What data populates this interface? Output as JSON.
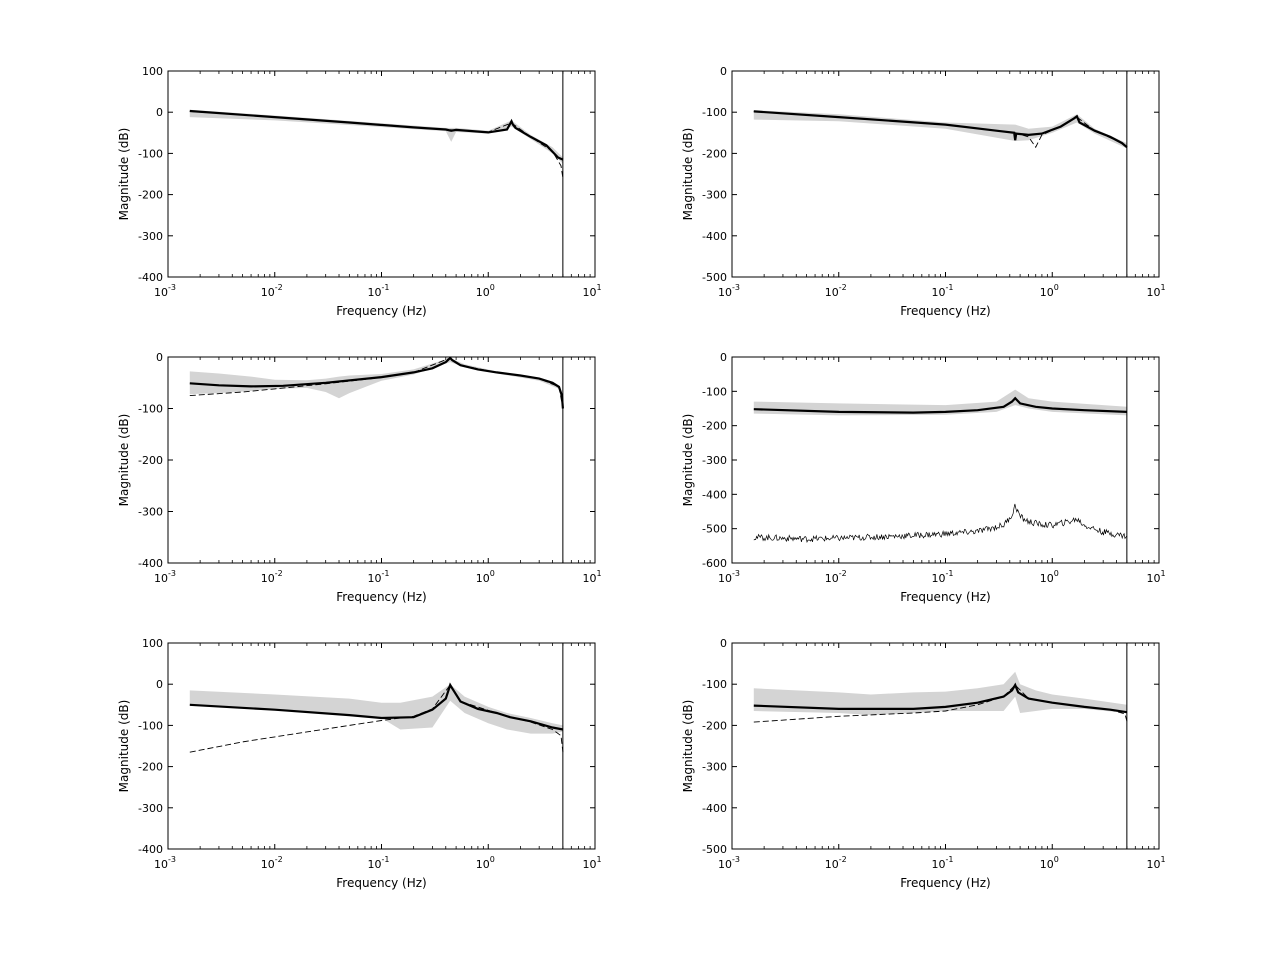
{
  "figure": {
    "background": "#ffffff",
    "band_color": "#d4d4d4",
    "line_color": "#000000"
  },
  "chart_data": [
    {
      "type": "line",
      "xscale": "log",
      "xlim": [
        0.001,
        10
      ],
      "ylim": [
        -400,
        100
      ],
      "yticks": [
        100,
        0,
        -100,
        -200,
        -300,
        -400
      ],
      "xticks": [
        {
          "base": "10",
          "exp": "-3"
        },
        {
          "base": "10",
          "exp": "-2"
        },
        {
          "base": "10",
          "exp": "-1"
        },
        {
          "base": "10",
          "exp": "0"
        },
        {
          "base": "10",
          "exp": "1"
        }
      ],
      "xlabel": "Frequency (Hz)",
      "ylabel": "Magnitude (dB)",
      "grid": false,
      "vline_x": 5,
      "series": [
        {
          "style": "solid-thick",
          "x": [
            0.0016,
            0.01,
            0.05,
            0.2,
            0.4,
            0.45,
            0.5,
            1.0,
            1.5,
            1.65,
            1.7,
            1.8,
            2.5,
            3.5,
            4.5,
            5.0
          ],
          "y": [
            3,
            -12,
            -25,
            -37,
            -42,
            -45,
            -43,
            -49,
            -42,
            -22,
            -30,
            -38,
            -60,
            -80,
            -110,
            -115
          ]
        },
        {
          "style": "dashed-thin",
          "x": [
            0.0016,
            0.01,
            0.1,
            0.4,
            1.0,
            1.65,
            2.5,
            4.0,
            4.8,
            5.0
          ],
          "y": [
            2,
            -12,
            -30,
            -42,
            -48,
            -26,
            -60,
            -95,
            -130,
            -160
          ]
        }
      ],
      "band": {
        "x": [
          0.0016,
          0.01,
          0.1,
          0.4,
          0.45,
          0.5,
          1.0,
          1.65,
          2.5,
          4.0,
          5.0
        ],
        "upper": [
          6,
          -8,
          -27,
          -38,
          -38,
          -38,
          -45,
          -20,
          -55,
          -85,
          -110
        ],
        "lower": [
          -12,
          -20,
          -36,
          -46,
          -72,
          -48,
          -52,
          -35,
          -65,
          -100,
          -125
        ]
      }
    },
    {
      "type": "line",
      "xscale": "log",
      "xlim": [
        0.001,
        10
      ],
      "ylim": [
        -500,
        0
      ],
      "yticks": [
        0,
        -100,
        -200,
        -300,
        -400,
        -500
      ],
      "xticks": [
        {
          "base": "10",
          "exp": "-3"
        },
        {
          "base": "10",
          "exp": "-2"
        },
        {
          "base": "10",
          "exp": "-1"
        },
        {
          "base": "10",
          "exp": "0"
        },
        {
          "base": "10",
          "exp": "1"
        }
      ],
      "xlabel": "Frequency (Hz)",
      "ylabel": "Magnitude (dB)",
      "grid": false,
      "vline_x": 5,
      "series": [
        {
          "style": "solid-thick",
          "x": [
            0.0016,
            0.01,
            0.1,
            0.3,
            0.44,
            0.45,
            0.46,
            0.6,
            0.8,
            1.2,
            1.6,
            1.7,
            1.8,
            2.5,
            3.5,
            4.5,
            5.0
          ],
          "y": [
            -98,
            -112,
            -130,
            -145,
            -150,
            -168,
            -152,
            -155,
            -152,
            -135,
            -115,
            -110,
            -125,
            -145,
            -160,
            -175,
            -185
          ]
        },
        {
          "style": "dashed-thin",
          "x": [
            0.0016,
            0.1,
            0.45,
            0.6,
            0.7,
            0.8,
            1.2,
            1.7,
            2.5,
            4.5,
            5.0
          ],
          "y": [
            -98,
            -130,
            -150,
            -160,
            -185,
            -155,
            -135,
            -112,
            -145,
            -175,
            -185
          ]
        }
      ],
      "band": {
        "x": [
          0.0016,
          0.01,
          0.1,
          0.45,
          0.6,
          1.0,
          1.7,
          2.5,
          5.0
        ],
        "upper": [
          -95,
          -105,
          -125,
          -130,
          -140,
          -135,
          -105,
          -140,
          -175
        ],
        "lower": [
          -118,
          -122,
          -140,
          -170,
          -168,
          -150,
          -125,
          -152,
          -188
        ]
      }
    },
    {
      "type": "line",
      "xscale": "log",
      "xlim": [
        0.001,
        10
      ],
      "ylim": [
        -400,
        0
      ],
      "yticks": [
        0,
        -100,
        -200,
        -300,
        -400
      ],
      "xticks": [
        {
          "base": "10",
          "exp": "-3"
        },
        {
          "base": "10",
          "exp": "-2"
        },
        {
          "base": "10",
          "exp": "-1"
        },
        {
          "base": "10",
          "exp": "0"
        },
        {
          "base": "10",
          "exp": "1"
        }
      ],
      "xlabel": "Frequency (Hz)",
      "ylabel": "Magnitude (dB)",
      "grid": false,
      "vline_x": 5,
      "series": [
        {
          "style": "solid-thick",
          "x": [
            0.0016,
            0.003,
            0.006,
            0.012,
            0.03,
            0.1,
            0.2,
            0.3,
            0.4,
            0.44,
            0.46,
            0.55,
            0.8,
            1.2,
            2.0,
            3.0,
            4.0,
            4.6,
            4.9,
            5.0
          ],
          "y": [
            -51,
            -55,
            -57,
            -56,
            -50,
            -39,
            -30,
            -22,
            -10,
            -2,
            -6,
            -16,
            -24,
            -30,
            -36,
            -42,
            -50,
            -58,
            -75,
            -100
          ]
        },
        {
          "style": "dashed-thin",
          "x": [
            0.0016,
            0.005,
            0.01,
            0.03,
            0.1,
            0.2,
            0.44,
            0.55,
            1.2,
            3.0,
            4.6,
            5.0
          ],
          "y": [
            -75,
            -68,
            -62,
            -52,
            -40,
            -30,
            -2,
            -16,
            -30,
            -42,
            -58,
            -100
          ]
        }
      ],
      "band": {
        "x": [
          0.0016,
          0.003,
          0.006,
          0.01,
          0.02,
          0.03,
          0.04,
          0.05,
          0.1,
          0.2,
          0.44,
          0.6,
          1.2,
          3.0,
          4.6,
          5.0
        ],
        "upper": [
          -28,
          -32,
          -38,
          -44,
          -45,
          -42,
          -38,
          -36,
          -33,
          -24,
          -2,
          -14,
          -28,
          -40,
          -56,
          -95
        ],
        "lower": [
          -72,
          -70,
          -66,
          -62,
          -60,
          -68,
          -80,
          -70,
          -46,
          -34,
          -10,
          -20,
          -32,
          -46,
          -62,
          -105
        ]
      }
    },
    {
      "type": "line",
      "xscale": "log",
      "xlim": [
        0.001,
        10
      ],
      "ylim": [
        -600,
        0
      ],
      "yticks": [
        0,
        -100,
        -200,
        -300,
        -400,
        -500,
        -600
      ],
      "xticks": [
        {
          "base": "10",
          "exp": "-3"
        },
        {
          "base": "10",
          "exp": "-2"
        },
        {
          "base": "10",
          "exp": "-1"
        },
        {
          "base": "10",
          "exp": "0"
        },
        {
          "base": "10",
          "exp": "1"
        }
      ],
      "xlabel": "Frequency (Hz)",
      "ylabel": "Magnitude (dB)",
      "grid": false,
      "vline_x": 5,
      "series": [
        {
          "style": "solid-thick",
          "x": [
            0.0016,
            0.01,
            0.05,
            0.1,
            0.2,
            0.35,
            0.42,
            0.45,
            0.5,
            0.7,
            1.0,
            2.0,
            5.0
          ],
          "y": [
            -152,
            -160,
            -162,
            -160,
            -155,
            -145,
            -130,
            -120,
            -135,
            -145,
            -150,
            -155,
            -160
          ]
        },
        {
          "style": "noisy-thin",
          "x": [
            0.0016,
            0.005,
            0.01,
            0.05,
            0.1,
            0.2,
            0.35,
            0.42,
            0.45,
            0.5,
            0.6,
            0.8,
            1.0,
            1.5,
            1.7,
            2.0,
            3.0,
            5.0
          ],
          "y": [
            -525,
            -530,
            -528,
            -520,
            -515,
            -508,
            -490,
            -460,
            -432,
            -465,
            -480,
            -488,
            -490,
            -478,
            -472,
            -490,
            -510,
            -522
          ]
        }
      ],
      "band": {
        "x": [
          0.0016,
          0.01,
          0.1,
          0.3,
          0.45,
          0.6,
          1.0,
          5.0
        ],
        "upper": [
          -130,
          -135,
          -140,
          -130,
          -95,
          -120,
          -130,
          -145
        ],
        "lower": [
          -165,
          -170,
          -168,
          -160,
          -140,
          -150,
          -160,
          -170
        ]
      }
    },
    {
      "type": "line",
      "xscale": "log",
      "xlim": [
        0.001,
        10
      ],
      "ylim": [
        -400,
        100
      ],
      "yticks": [
        100,
        0,
        -100,
        -200,
        -300,
        -400
      ],
      "xticks": [
        {
          "base": "10",
          "exp": "-3"
        },
        {
          "base": "10",
          "exp": "-2"
        },
        {
          "base": "10",
          "exp": "-1"
        },
        {
          "base": "10",
          "exp": "0"
        },
        {
          "base": "10",
          "exp": "1"
        }
      ],
      "xlabel": "Frequency (Hz)",
      "ylabel": "Magnitude (dB)",
      "grid": false,
      "vline_x": 5,
      "series": [
        {
          "style": "solid-thick",
          "x": [
            0.0016,
            0.01,
            0.05,
            0.1,
            0.2,
            0.3,
            0.4,
            0.44,
            0.46,
            0.55,
            0.8,
            1.2,
            1.6,
            2.5,
            4.0,
            5.0
          ],
          "y": [
            -50,
            -62,
            -75,
            -82,
            -80,
            -62,
            -35,
            -2,
            -10,
            -42,
            -60,
            -70,
            -80,
            -90,
            -105,
            -110
          ]
        },
        {
          "style": "dashed-thin",
          "x": [
            0.0016,
            0.005,
            0.01,
            0.05,
            0.1,
            0.2,
            0.3,
            0.44,
            0.55,
            1.2,
            2.5,
            4.0,
            4.8,
            5.0
          ],
          "y": [
            -165,
            -140,
            -128,
            -100,
            -88,
            -78,
            -60,
            -2,
            -42,
            -70,
            -92,
            -110,
            -125,
            -165
          ]
        }
      ],
      "band": {
        "x": [
          0.0016,
          0.01,
          0.05,
          0.1,
          0.15,
          0.3,
          0.44,
          0.6,
          1.0,
          1.5,
          2.5,
          4.0,
          5.0
        ],
        "upper": [
          -15,
          -25,
          -35,
          -45,
          -45,
          -30,
          0,
          -30,
          -55,
          -70,
          -82,
          -95,
          -100
        ],
        "lower": [
          -50,
          -62,
          -75,
          -82,
          -110,
          -105,
          -40,
          -70,
          -95,
          -110,
          -120,
          -120,
          -115
        ]
      }
    },
    {
      "type": "line",
      "xscale": "log",
      "xlim": [
        0.001,
        10
      ],
      "ylim": [
        -500,
        0
      ],
      "yticks": [
        0,
        -100,
        -200,
        -300,
        -400,
        -500
      ],
      "xticks": [
        {
          "base": "10",
          "exp": "-3"
        },
        {
          "base": "10",
          "exp": "-2"
        },
        {
          "base": "10",
          "exp": "-1"
        },
        {
          "base": "10",
          "exp": "0"
        },
        {
          "base": "10",
          "exp": "1"
        }
      ],
      "xlabel": "Frequency (Hz)",
      "ylabel": "Magnitude (dB)",
      "grid": false,
      "vline_x": 5,
      "series": [
        {
          "style": "solid-thick",
          "x": [
            0.0016,
            0.01,
            0.05,
            0.1,
            0.2,
            0.35,
            0.42,
            0.45,
            0.48,
            0.6,
            1.0,
            2.0,
            3.5,
            5.0
          ],
          "y": [
            -152,
            -160,
            -160,
            -155,
            -145,
            -130,
            -115,
            -102,
            -120,
            -135,
            -145,
            -155,
            -162,
            -168
          ]
        },
        {
          "style": "dashed-thin",
          "x": [
            0.0016,
            0.01,
            0.05,
            0.1,
            0.2,
            0.35,
            0.45,
            0.6,
            1.0,
            2.0,
            3.5,
            4.8,
            5.0
          ],
          "y": [
            -192,
            -178,
            -170,
            -165,
            -150,
            -130,
            -102,
            -135,
            -145,
            -155,
            -162,
            -172,
            -190
          ]
        }
      ],
      "band": {
        "x": [
          0.0016,
          0.01,
          0.02,
          0.05,
          0.1,
          0.2,
          0.35,
          0.45,
          0.5,
          0.7,
          1.0,
          2.0,
          5.0
        ],
        "upper": [
          -110,
          -120,
          -125,
          -120,
          -118,
          -110,
          -100,
          -70,
          -100,
          -115,
          -125,
          -135,
          -150
        ],
        "lower": [
          -165,
          -170,
          -175,
          -170,
          -165,
          -165,
          -165,
          -130,
          -170,
          -165,
          -160,
          -160,
          -170
        ]
      }
    }
  ]
}
